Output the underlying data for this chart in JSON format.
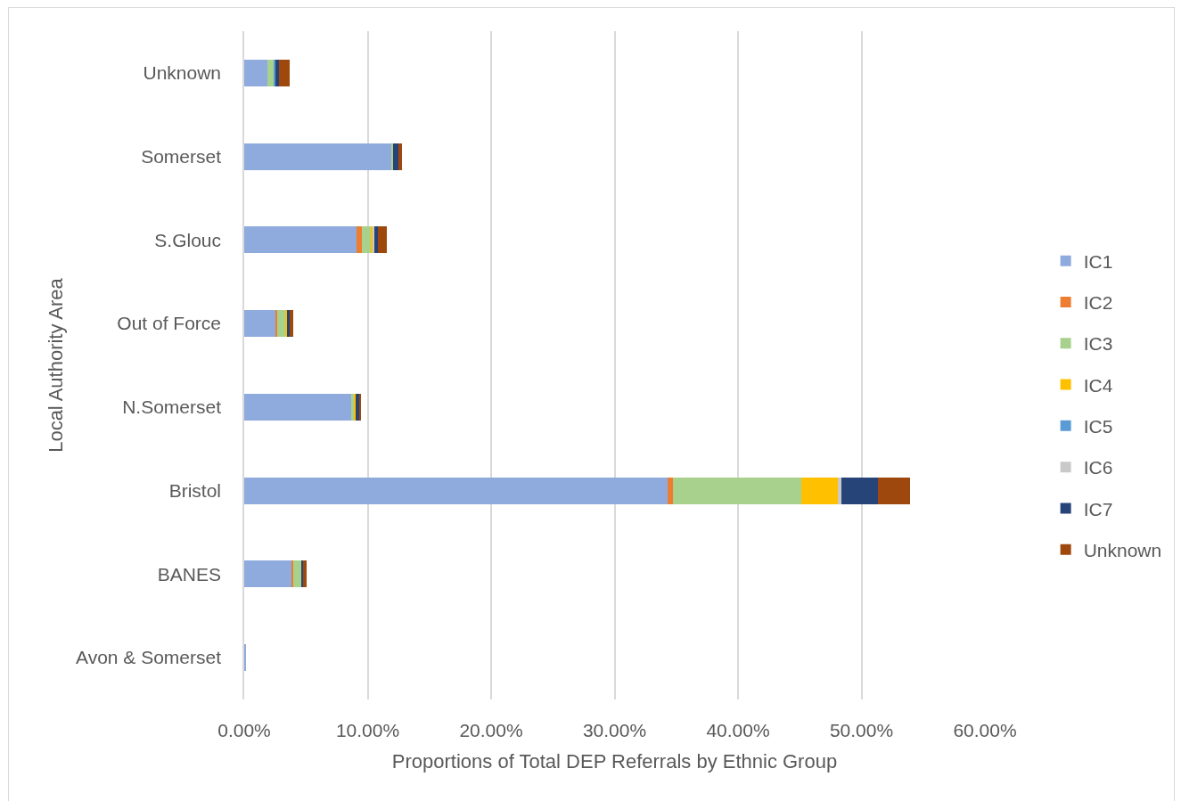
{
  "chart_data": {
    "type": "bar",
    "orientation": "horizontal",
    "stacked": true,
    "xlabel": "Proportions of Total DEP Referrals by Ethnic Group",
    "ylabel": "Local Authority Area",
    "categories": [
      "Unknown",
      "Somerset",
      "S.Glouc",
      "Out of Force",
      "N.Somerset",
      "Bristol",
      "BANES",
      "Avon & Somerset"
    ],
    "series": [
      {
        "name": "IC1",
        "color": "#8faadc",
        "values": [
          1.9,
          11.9,
          9.1,
          2.5,
          8.7,
          34.3,
          3.85,
          0.1
        ]
      },
      {
        "name": "IC2",
        "color": "#ed7d31",
        "values": [
          null,
          null,
          0.45,
          0.15,
          null,
          0.4,
          0.15,
          null
        ]
      },
      {
        "name": "IC3",
        "color": "#a9d18e",
        "values": [
          0.45,
          0.15,
          0.7,
          0.7,
          0.15,
          10.4,
          0.6,
          null
        ]
      },
      {
        "name": "IC4",
        "color": "#ffc000",
        "values": [
          null,
          null,
          0.15,
          0.15,
          0.15,
          3.0,
          null,
          null
        ]
      },
      {
        "name": "IC5",
        "color": "#5b9bd5",
        "values": [
          0.15,
          null,
          null,
          null,
          null,
          null,
          null,
          null
        ]
      },
      {
        "name": "IC6",
        "color": "#c9c9c9",
        "values": [
          null,
          null,
          0.15,
          null,
          null,
          0.3,
          null,
          null
        ]
      },
      {
        "name": "IC7",
        "color": "#264478",
        "values": [
          0.3,
          0.45,
          0.3,
          0.15,
          0.3,
          2.9,
          0.15,
          null
        ]
      },
      {
        "name": "Unknown",
        "color": "#9e480e",
        "values": [
          0.85,
          0.3,
          0.7,
          0.3,
          0.15,
          2.6,
          0.3,
          null
        ]
      }
    ],
    "xlim": [
      0,
      60
    ],
    "xticks": [
      {
        "value": 0,
        "label": "0.00%"
      },
      {
        "value": 10,
        "label": "10.00%"
      },
      {
        "value": 20,
        "label": "20.00%"
      },
      {
        "value": 30,
        "label": "30.00%"
      },
      {
        "value": 40,
        "label": "40.00%"
      },
      {
        "value": 50,
        "label": "50.00%"
      },
      {
        "value": 60,
        "label": "60.00%"
      }
    ],
    "grid": "x",
    "legend": "right"
  }
}
